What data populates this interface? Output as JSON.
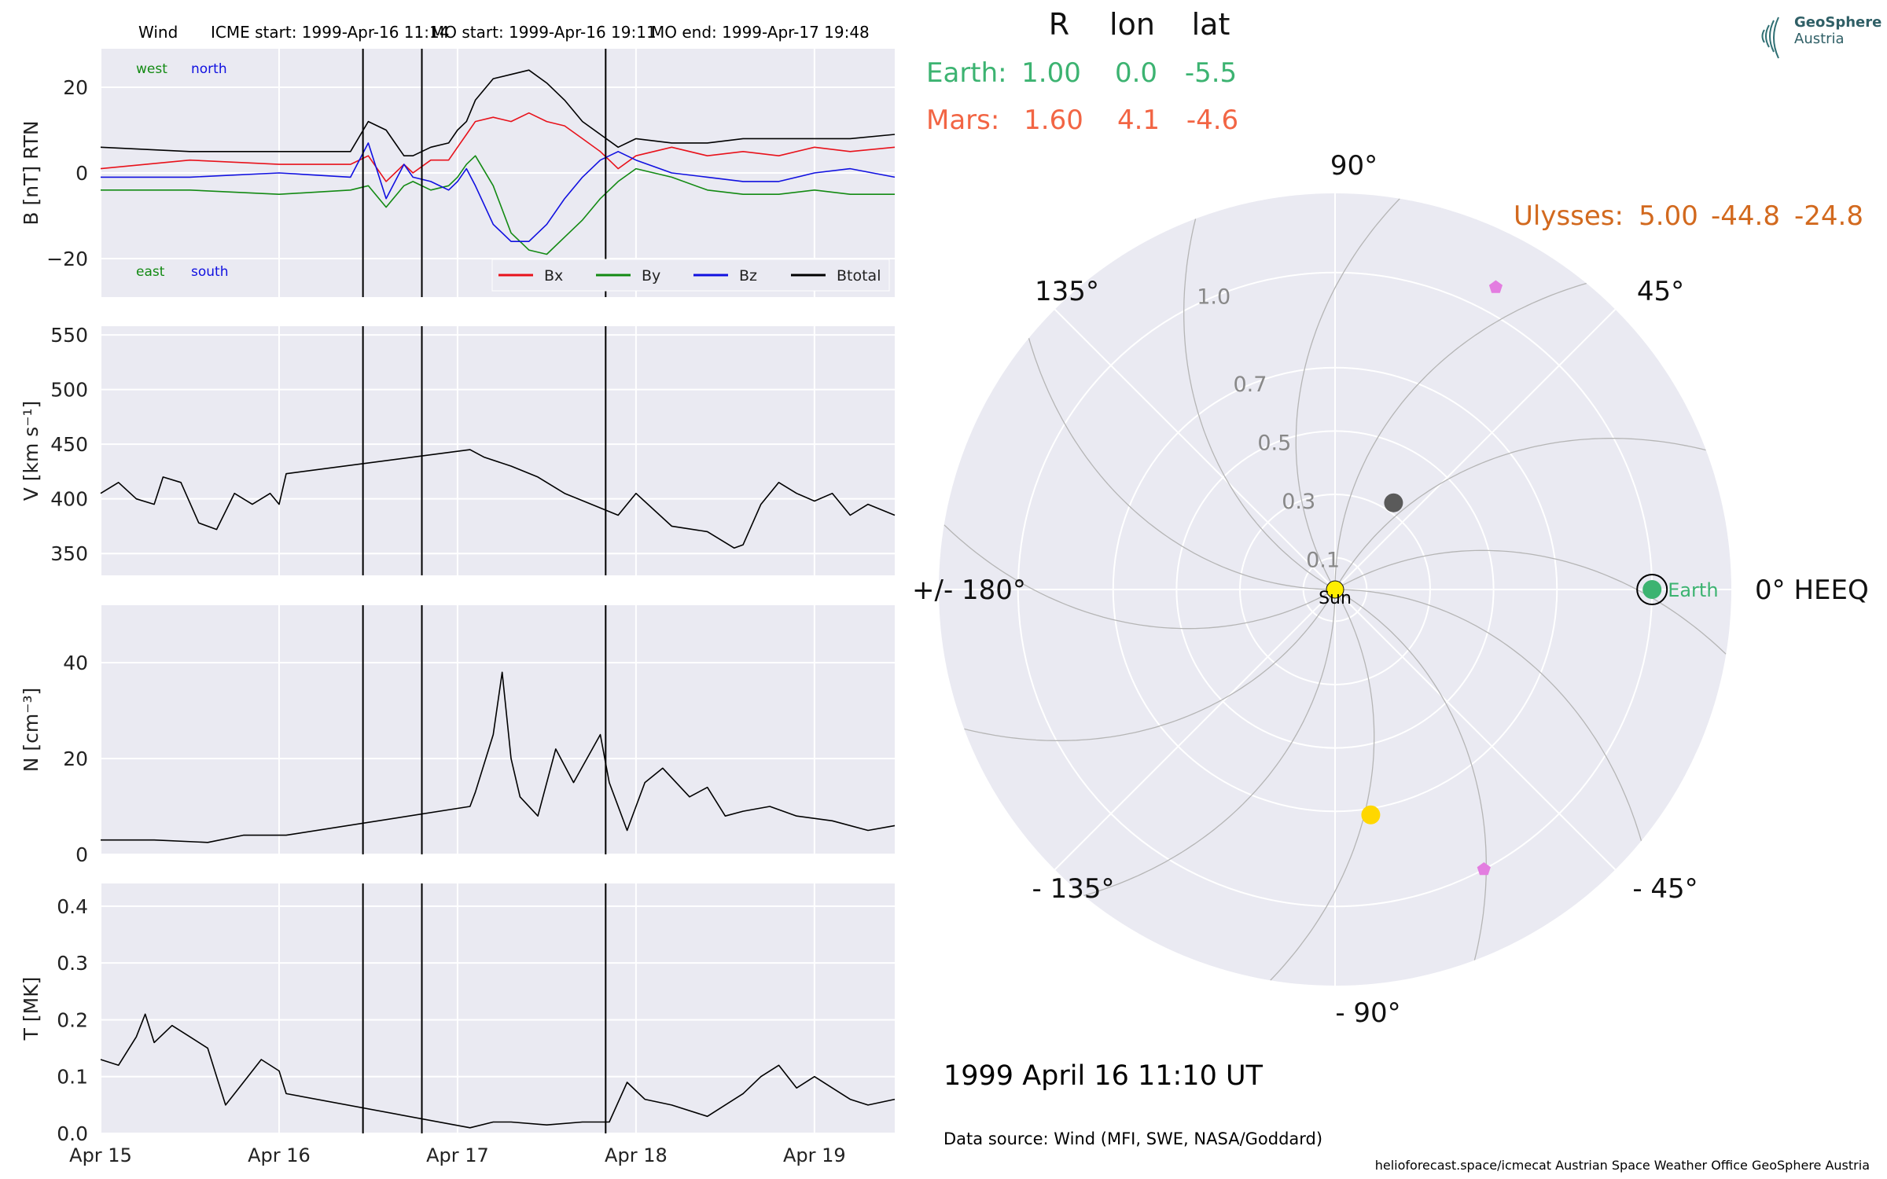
{
  "header": {
    "spacecraft": "Wind",
    "icme_start": "ICME start: 1999-Apr-16 11:14",
    "mo_start": "MO start: 1999-Apr-16 19:11",
    "mo_end": "MO end: 1999-Apr-17 19:48"
  },
  "logo": {
    "line1": "GeoSphere",
    "line2": "Austria"
  },
  "footer": {
    "date_line": "1999 April 16  11:10 UT",
    "source": "Data source: Wind (MFI, SWE, NASA/Goddard)",
    "credits": "helioforecast.space/icmecat   Austrian Space Weather Office   GeoSphere Austria"
  },
  "colors": {
    "panel_bg": "#eaeaf2",
    "grid": "#ffffff",
    "bx": "#e8121b",
    "by": "#138a13",
    "bz": "#1010e0",
    "btotal": "#000000",
    "earth": "#3cb371",
    "mars": "#f26544",
    "ulysses": "#d2691e",
    "sun": "#ffee00",
    "wedge_marker": "#e37de0",
    "gray_body": "#5a5a5a"
  },
  "chart_data": [
    {
      "type": "line",
      "panel": "magnetic_field",
      "ylabel": "B [nT] RTN",
      "ylim": [
        -29,
        29
      ],
      "yticks": [
        20,
        0,
        -20
      ],
      "ytick_labels": [
        "20",
        "0",
        "−20"
      ],
      "xlim": [
        0,
        4.45
      ],
      "annotations": {
        "top_left": [
          "west",
          "north"
        ],
        "bottom_left": [
          "east",
          "south"
        ]
      },
      "legend": {
        "placement": "bottom-right",
        "entries": [
          "Bx",
          "By",
          "Bz",
          "Btotal"
        ]
      },
      "series": [
        {
          "name": "Bx",
          "color": "#e8121b",
          "x": [
            0,
            0.5,
            1.0,
            1.4,
            1.5,
            1.6,
            1.7,
            1.75,
            1.85,
            1.95,
            2.0,
            2.05,
            2.1,
            2.2,
            2.3,
            2.4,
            2.5,
            2.6,
            2.7,
            2.8,
            2.9,
            3.0,
            3.2,
            3.4,
            3.6,
            3.8,
            4.0,
            4.2,
            4.45
          ],
          "y": [
            1,
            3,
            2,
            2,
            4,
            -2,
            2,
            0,
            3,
            3,
            6,
            9,
            12,
            13,
            12,
            14,
            12,
            11,
            8,
            5,
            1,
            4,
            6,
            4,
            5,
            4,
            6,
            5,
            6
          ]
        },
        {
          "name": "By",
          "color": "#138a13",
          "x": [
            0,
            0.5,
            1.0,
            1.4,
            1.5,
            1.6,
            1.7,
            1.75,
            1.85,
            1.95,
            2.0,
            2.05,
            2.1,
            2.2,
            2.3,
            2.4,
            2.5,
            2.6,
            2.7,
            2.8,
            2.9,
            3.0,
            3.2,
            3.4,
            3.6,
            3.8,
            4.0,
            4.2,
            4.45
          ],
          "y": [
            -4,
            -4,
            -5,
            -4,
            -3,
            -8,
            -3,
            -2,
            -4,
            -3,
            -1,
            2,
            4,
            -3,
            -14,
            -18,
            -19,
            -15,
            -11,
            -6,
            -2,
            1,
            -1,
            -4,
            -5,
            -5,
            -4,
            -5,
            -5
          ]
        },
        {
          "name": "Bz",
          "color": "#1010e0",
          "x": [
            0,
            0.5,
            1.0,
            1.4,
            1.5,
            1.6,
            1.7,
            1.75,
            1.85,
            1.95,
            2.0,
            2.05,
            2.1,
            2.2,
            2.3,
            2.4,
            2.5,
            2.6,
            2.7,
            2.8,
            2.9,
            3.0,
            3.2,
            3.4,
            3.6,
            3.8,
            4.0,
            4.2,
            4.45
          ],
          "y": [
            -1,
            -1,
            0,
            -1,
            7,
            -6,
            2,
            -1,
            -2,
            -4,
            -2,
            1,
            -3,
            -12,
            -16,
            -16,
            -12,
            -6,
            -1,
            3,
            5,
            3,
            0,
            -1,
            -2,
            -2,
            0,
            1,
            -1
          ]
        },
        {
          "name": "Btotal",
          "color": "#000000",
          "x": [
            0,
            0.5,
            1.0,
            1.4,
            1.5,
            1.6,
            1.7,
            1.75,
            1.85,
            1.95,
            2.0,
            2.05,
            2.1,
            2.2,
            2.3,
            2.4,
            2.5,
            2.6,
            2.7,
            2.8,
            2.9,
            3.0,
            3.2,
            3.4,
            3.6,
            3.8,
            4.0,
            4.2,
            4.45
          ],
          "y": [
            6,
            5,
            5,
            5,
            12,
            10,
            4,
            4,
            6,
            7,
            10,
            12,
            17,
            22,
            23,
            24,
            21,
            17,
            12,
            9,
            6,
            8,
            7,
            7,
            8,
            8,
            8,
            8,
            9
          ]
        }
      ]
    },
    {
      "type": "line",
      "panel": "speed",
      "ylabel": "V [km s⁻¹]",
      "ylim": [
        330,
        558
      ],
      "yticks": [
        550,
        500,
        450,
        400,
        350
      ],
      "ytick_labels": [
        "550",
        "500",
        "450",
        "400",
        "350"
      ],
      "xlim": [
        0,
        4.45
      ],
      "series": [
        {
          "name": "V",
          "x": [
            0,
            0.1,
            0.2,
            0.3,
            0.35,
            0.45,
            0.55,
            0.65,
            0.75,
            0.85,
            0.95,
            1.0,
            1.04,
            2.07,
            2.15,
            2.3,
            2.45,
            2.6,
            2.75,
            2.9,
            3.0,
            3.2,
            3.4,
            3.55,
            3.6,
            3.7,
            3.8,
            3.9,
            4.0,
            4.1,
            4.2,
            4.3,
            4.45
          ],
          "y": [
            405,
            415,
            400,
            395,
            420,
            415,
            378,
            372,
            405,
            395,
            405,
            395,
            423,
            445,
            438,
            430,
            420,
            405,
            395,
            385,
            405,
            375,
            370,
            355,
            358,
            395,
            415,
            405,
            398,
            405,
            385,
            395,
            385
          ]
        }
      ]
    },
    {
      "type": "line",
      "panel": "density",
      "ylabel": "N [cm⁻³]",
      "ylim": [
        0,
        52
      ],
      "yticks": [
        40,
        20,
        0
      ],
      "ytick_labels": [
        "40",
        "20",
        "0"
      ],
      "xlim": [
        0,
        4.45
      ],
      "series": [
        {
          "name": "N",
          "x": [
            0,
            0.3,
            0.6,
            0.8,
            1.0,
            1.04,
            2.07,
            2.1,
            2.2,
            2.25,
            2.3,
            2.35,
            2.45,
            2.55,
            2.65,
            2.8,
            2.85,
            2.95,
            3.0,
            3.05,
            3.15,
            3.3,
            3.4,
            3.5,
            3.6,
            3.75,
            3.9,
            4.1,
            4.3,
            4.45
          ],
          "y": [
            3,
            3,
            2.5,
            4,
            4,
            4,
            10,
            13,
            25,
            38,
            20,
            12,
            8,
            22,
            15,
            25,
            15,
            5,
            10,
            15,
            18,
            12,
            14,
            8,
            9,
            10,
            8,
            7,
            5,
            6
          ]
        }
      ]
    },
    {
      "type": "line",
      "panel": "temperature",
      "ylabel": "T [MK]",
      "ylim": [
        0,
        0.44
      ],
      "yticks": [
        0.4,
        0.3,
        0.2,
        0.1,
        0.0
      ],
      "ytick_labels": [
        "0.4",
        "0.3",
        "0.2",
        "0.1",
        "0.0"
      ],
      "xlim": [
        0,
        4.45
      ],
      "xticks": [
        0,
        1,
        2,
        3,
        4
      ],
      "xtick_labels": [
        "Apr 15",
        "Apr 16",
        "Apr 17",
        "Apr 18",
        "Apr 19"
      ],
      "series": [
        {
          "name": "T",
          "x": [
            0,
            0.1,
            0.2,
            0.25,
            0.3,
            0.4,
            0.5,
            0.6,
            0.65,
            0.7,
            0.8,
            0.9,
            1.0,
            1.04,
            2.07,
            2.2,
            2.3,
            2.5,
            2.7,
            2.85,
            2.95,
            3.05,
            3.2,
            3.4,
            3.6,
            3.7,
            3.8,
            3.9,
            4.0,
            4.1,
            4.2,
            4.3,
            4.45
          ],
          "y": [
            0.13,
            0.12,
            0.17,
            0.21,
            0.16,
            0.19,
            0.17,
            0.15,
            0.1,
            0.05,
            0.09,
            0.13,
            0.11,
            0.07,
            0.01,
            0.02,
            0.02,
            0.015,
            0.02,
            0.02,
            0.09,
            0.06,
            0.05,
            0.03,
            0.07,
            0.1,
            0.12,
            0.08,
            0.1,
            0.08,
            0.06,
            0.05,
            0.06
          ]
        }
      ]
    },
    {
      "type": "scatter",
      "panel": "polar_orbit",
      "table_headers": [
        "R",
        "lon",
        "lat"
      ],
      "bodies_table": [
        {
          "name": "Earth:",
          "r": "1.00",
          "lon": "0.0",
          "lat": "-5.5",
          "color": "#3cb371"
        },
        {
          "name": "Mars:",
          "r": "1.60",
          "lon": "4.1",
          "lat": "-4.6",
          "color": "#f26544"
        },
        {
          "name": "Ulysses:",
          "r": "5.00",
          "lon": "-44.8",
          "lat": "-24.8",
          "color": "#d2691e"
        }
      ],
      "angle_labels": [
        "90°",
        "45°",
        "0° HEEQ",
        "- 45°",
        "- 90°",
        "- 135°",
        "+/- 180°",
        "135°"
      ],
      "radial_ticks": [
        0.1,
        0.3,
        0.5,
        0.7,
        1.0
      ],
      "radial_tick_labels": [
        "0.1",
        "0.3",
        "0.5",
        "0.7",
        "1.0"
      ],
      "r_max": 1.25,
      "sun_label": "Sun",
      "earth_label": "Earth",
      "markers": [
        {
          "name": "Sun",
          "r": 0.0,
          "theta": 0,
          "color": "#ffee00",
          "shape": "circle"
        },
        {
          "name": "Earth",
          "r": 1.0,
          "theta": 0,
          "color": "#3cb371",
          "shape": "circle"
        },
        {
          "name": "gray-body",
          "r": 0.33,
          "theta": 56,
          "color": "#5a5a5a",
          "shape": "circle"
        },
        {
          "name": "yellow-body",
          "r": 0.72,
          "theta": -81,
          "color": "#ffd700",
          "shape": "circle"
        },
        {
          "name": "pentagon-upper",
          "r": 1.08,
          "theta": 62,
          "color": "#e37de0",
          "shape": "pentagon"
        },
        {
          "name": "pentagon-lower",
          "r": 1.0,
          "theta": -62,
          "color": "#e37de0",
          "shape": "pentagon"
        }
      ],
      "spirals": {
        "count": 12,
        "solar_wind_speed": 400
      }
    }
  ]
}
